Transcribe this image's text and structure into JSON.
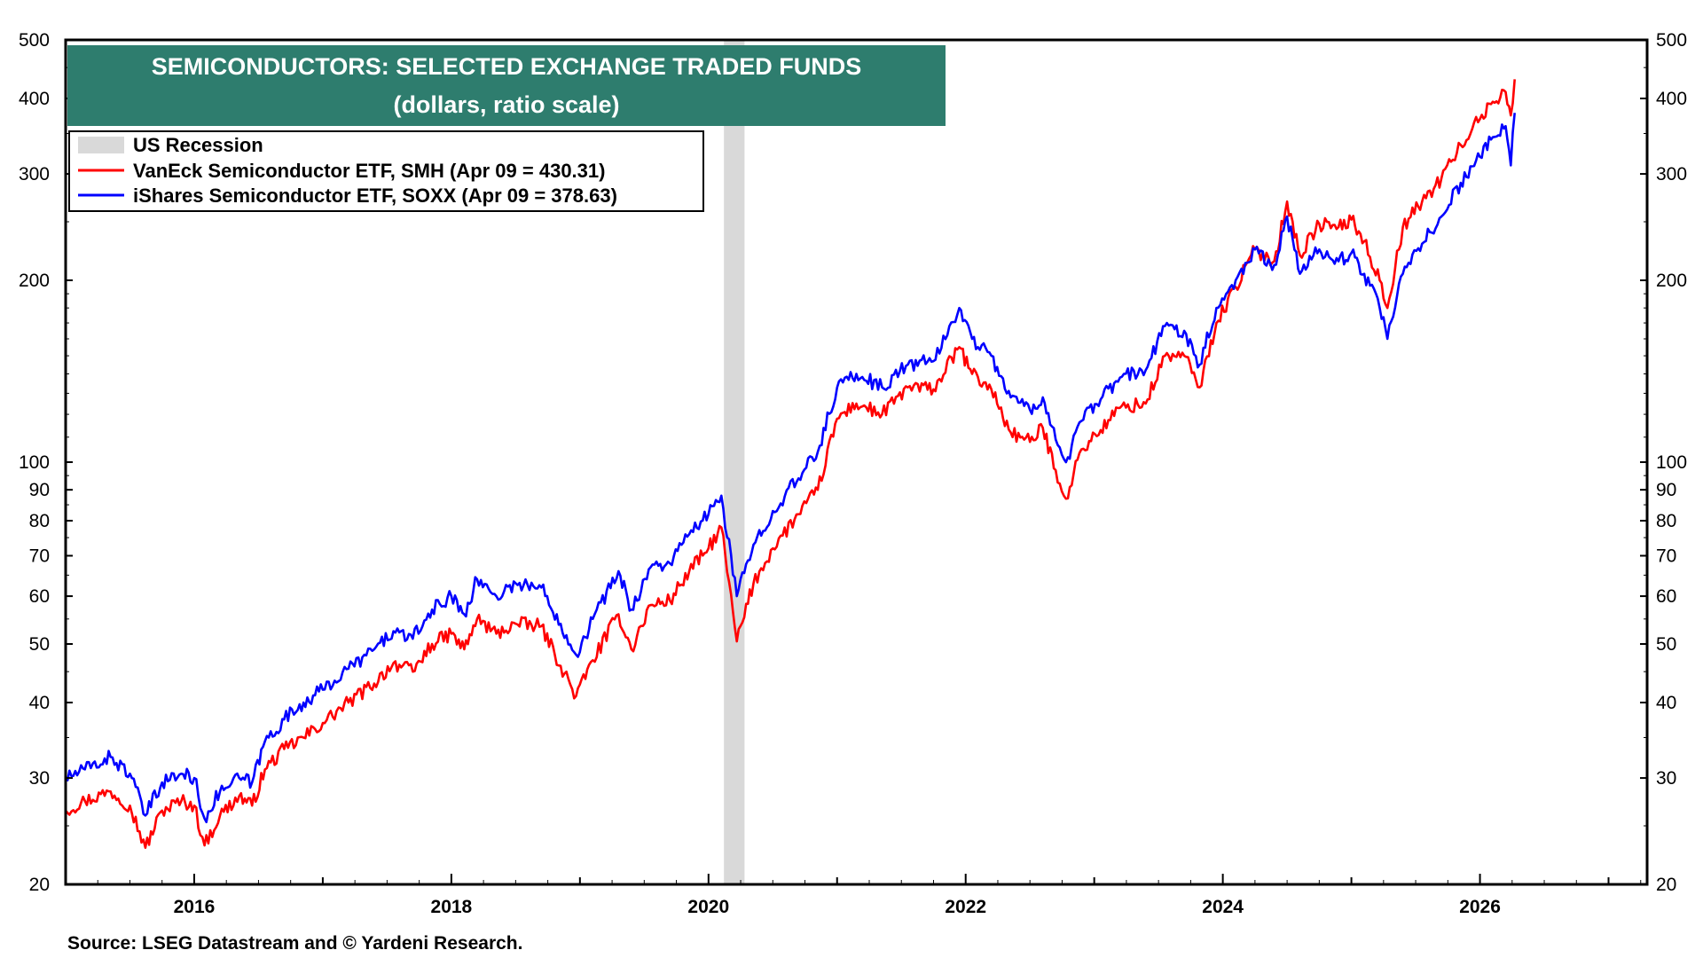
{
  "chart_data": {
    "type": "line",
    "title": "SEMICONDUCTORS: SELECTED EXCHANGE TRADED FUNDS",
    "subtitle": "(dollars, ratio scale)",
    "y_scale": "log",
    "ylim": [
      20,
      500
    ],
    "xlim": [
      2015.0,
      2027.3
    ],
    "y_ticks": [
      20,
      30,
      40,
      50,
      60,
      70,
      80,
      90,
      100,
      200,
      300,
      400,
      500
    ],
    "x_tick_labels": [
      "2016",
      "2018",
      "2020",
      "2022",
      "2024",
      "2026"
    ],
    "recession": {
      "label": "US Recession",
      "start": 2020.12,
      "end": 2020.28,
      "color": "#d9d9d9"
    },
    "series": [
      {
        "name": "VanEck Semiconductor ETF, SMH (Apr 09 = 430.31)",
        "color": "#ff0000",
        "points": [
          [
            2015.0,
            26.5
          ],
          [
            2015.15,
            27.5
          ],
          [
            2015.35,
            28.5
          ],
          [
            2015.5,
            27.0
          ],
          [
            2015.62,
            23.0
          ],
          [
            2015.75,
            26.5
          ],
          [
            2015.9,
            27.5
          ],
          [
            2016.0,
            27.0
          ],
          [
            2016.08,
            23.2
          ],
          [
            2016.2,
            26.0
          ],
          [
            2016.35,
            28.0
          ],
          [
            2016.45,
            27.0
          ],
          [
            2016.55,
            31.0
          ],
          [
            2016.7,
            33.5
          ],
          [
            2016.85,
            35.0
          ],
          [
            2017.0,
            37.0
          ],
          [
            2017.2,
            40.0
          ],
          [
            2017.4,
            43.0
          ],
          [
            2017.55,
            46.5
          ],
          [
            2017.7,
            45.0
          ],
          [
            2017.85,
            50.0
          ],
          [
            2018.0,
            52.0
          ],
          [
            2018.1,
            49.0
          ],
          [
            2018.2,
            55.0
          ],
          [
            2018.35,
            52.0
          ],
          [
            2018.5,
            54.0
          ],
          [
            2018.7,
            53.5
          ],
          [
            2018.85,
            46.0
          ],
          [
            2018.97,
            41.0
          ],
          [
            2019.1,
            47.0
          ],
          [
            2019.3,
            56.0
          ],
          [
            2019.4,
            49.0
          ],
          [
            2019.55,
            58.0
          ],
          [
            2019.7,
            59.0
          ],
          [
            2019.85,
            66.0
          ],
          [
            2020.0,
            72.0
          ],
          [
            2020.1,
            78.0
          ],
          [
            2020.22,
            50.5
          ],
          [
            2020.35,
            63.0
          ],
          [
            2020.5,
            72.0
          ],
          [
            2020.7,
            82.0
          ],
          [
            2020.85,
            90.0
          ],
          [
            2021.0,
            118.0
          ],
          [
            2021.15,
            125.0
          ],
          [
            2021.35,
            120.0
          ],
          [
            2021.55,
            133.0
          ],
          [
            2021.75,
            132.0
          ],
          [
            2021.95,
            155.0
          ],
          [
            2022.05,
            140.0
          ],
          [
            2022.2,
            132.0
          ],
          [
            2022.35,
            112.0
          ],
          [
            2022.5,
            108.0
          ],
          [
            2022.6,
            114.0
          ],
          [
            2022.7,
            97.0
          ],
          [
            2022.78,
            87.0
          ],
          [
            2022.9,
            105.0
          ],
          [
            2023.05,
            113.0
          ],
          [
            2023.2,
            123.0
          ],
          [
            2023.4,
            125.0
          ],
          [
            2023.55,
            150.0
          ],
          [
            2023.7,
            150.0
          ],
          [
            2023.82,
            133.0
          ],
          [
            2023.95,
            170.0
          ],
          [
            2024.1,
            195.0
          ],
          [
            2024.25,
            225.0
          ],
          [
            2024.4,
            215.0
          ],
          [
            2024.5,
            270.0
          ],
          [
            2024.6,
            220.0
          ],
          [
            2024.75,
            248.0
          ],
          [
            2024.9,
            245.0
          ],
          [
            2025.0,
            252.0
          ],
          [
            2025.1,
            232.0
          ],
          [
            2025.22,
            200.0
          ],
          [
            2025.28,
            180.0
          ],
          [
            2025.4,
            245.0
          ],
          [
            2025.55,
            270.0
          ],
          [
            2025.7,
            295.0
          ],
          [
            2025.85,
            335.0
          ],
          [
            2026.0,
            370.0
          ],
          [
            2026.1,
            395.0
          ],
          [
            2026.2,
            410.0
          ],
          [
            2026.24,
            375.0
          ],
          [
            2026.27,
            430.31
          ]
        ]
      },
      {
        "name": "iShares Semiconductor ETF, SOXX (Apr 09 = 378.63)",
        "color": "#0000ff",
        "points": [
          [
            2015.0,
            30.0
          ],
          [
            2015.15,
            31.0
          ],
          [
            2015.35,
            32.5
          ],
          [
            2015.5,
            30.5
          ],
          [
            2015.62,
            26.0
          ],
          [
            2015.75,
            29.5
          ],
          [
            2015.9,
            30.5
          ],
          [
            2016.0,
            30.0
          ],
          [
            2016.08,
            25.7
          ],
          [
            2016.2,
            28.5
          ],
          [
            2016.35,
            30.0
          ],
          [
            2016.45,
            29.5
          ],
          [
            2016.55,
            34.5
          ],
          [
            2016.7,
            37.5
          ],
          [
            2016.85,
            40.0
          ],
          [
            2017.0,
            42.0
          ],
          [
            2017.2,
            45.5
          ],
          [
            2017.4,
            49.0
          ],
          [
            2017.55,
            52.5
          ],
          [
            2017.7,
            51.0
          ],
          [
            2017.85,
            57.0
          ],
          [
            2018.0,
            60.0
          ],
          [
            2018.1,
            56.0
          ],
          [
            2018.2,
            64.0
          ],
          [
            2018.35,
            60.0
          ],
          [
            2018.5,
            63.0
          ],
          [
            2018.7,
            62.0
          ],
          [
            2018.85,
            54.0
          ],
          [
            2018.97,
            48.0
          ],
          [
            2019.1,
            55.0
          ],
          [
            2019.3,
            66.0
          ],
          [
            2019.4,
            57.0
          ],
          [
            2019.55,
            67.0
          ],
          [
            2019.7,
            68.0
          ],
          [
            2019.85,
            76.0
          ],
          [
            2020.0,
            82.0
          ],
          [
            2020.1,
            88.0
          ],
          [
            2020.22,
            60.0
          ],
          [
            2020.35,
            73.0
          ],
          [
            2020.5,
            83.0
          ],
          [
            2020.7,
            94.0
          ],
          [
            2020.85,
            104.0
          ],
          [
            2021.0,
            133.0
          ],
          [
            2021.15,
            140.0
          ],
          [
            2021.35,
            133.0
          ],
          [
            2021.55,
            145.0
          ],
          [
            2021.75,
            147.0
          ],
          [
            2021.95,
            180.0
          ],
          [
            2022.05,
            160.0
          ],
          [
            2022.2,
            150.0
          ],
          [
            2022.35,
            128.0
          ],
          [
            2022.5,
            122.0
          ],
          [
            2022.6,
            128.0
          ],
          [
            2022.7,
            109.0
          ],
          [
            2022.78,
            100.0
          ],
          [
            2022.9,
            117.0
          ],
          [
            2023.05,
            127.0
          ],
          [
            2023.2,
            138.0
          ],
          [
            2023.4,
            142.0
          ],
          [
            2023.55,
            168.0
          ],
          [
            2023.7,
            165.0
          ],
          [
            2023.82,
            145.0
          ],
          [
            2023.95,
            180.0
          ],
          [
            2024.1,
            200.0
          ],
          [
            2024.25,
            225.0
          ],
          [
            2024.4,
            212.0
          ],
          [
            2024.5,
            255.0
          ],
          [
            2024.6,
            205.0
          ],
          [
            2024.75,
            225.0
          ],
          [
            2024.9,
            215.0
          ],
          [
            2025.0,
            222.0
          ],
          [
            2025.1,
            205.0
          ],
          [
            2025.22,
            180.0
          ],
          [
            2025.28,
            160.0
          ],
          [
            2025.4,
            205.0
          ],
          [
            2025.55,
            230.0
          ],
          [
            2025.7,
            255.0
          ],
          [
            2025.85,
            290.0
          ],
          [
            2026.0,
            320.0
          ],
          [
            2026.1,
            345.0
          ],
          [
            2026.2,
            360.0
          ],
          [
            2026.24,
            310.0
          ],
          [
            2026.27,
            378.63
          ]
        ]
      }
    ]
  },
  "legend": {
    "recession_label": "US Recession",
    "smh_label": "VanEck Semiconductor ETF, SMH (Apr 09 = 430.31)",
    "soxx_label": "iShares Semiconductor ETF, SOXX (Apr 09 = 378.63)"
  },
  "source": "Source: LSEG Datastream and © Yardeni Research.",
  "colors": {
    "title_bg": "#2e7d6e",
    "title_text": "#ffffff",
    "recession": "#d9d9d9"
  }
}
